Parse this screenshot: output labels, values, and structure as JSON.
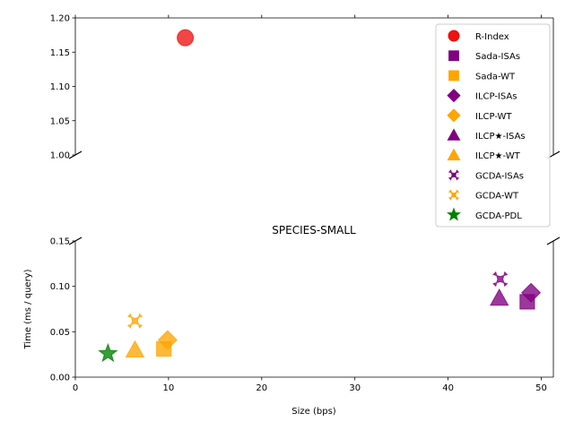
{
  "chart_data": {
    "type": "scatter",
    "title": "SPECIES-SMALL",
    "xlabel": "Size (bps)",
    "ylabel": "Time (ms / query)",
    "xlim": [
      0,
      51.3
    ],
    "x_ticks": [
      0,
      10,
      20,
      30,
      40,
      50
    ],
    "upper_panel": {
      "ylim": [
        1.0,
        1.2
      ],
      "y_ticks": [
        "1.00",
        "1.05",
        "1.10",
        "1.15",
        "1.20"
      ]
    },
    "lower_panel": {
      "ylim": [
        0.0,
        0.15
      ],
      "y_ticks": [
        "0.00",
        "0.05",
        "0.10",
        "0.15"
      ]
    },
    "colors": {
      "red": "#ee1111",
      "purple": "#800080",
      "orange": "#ffa500",
      "green": "#008000"
    },
    "series": [
      {
        "name": "R-Index",
        "marker": "circle",
        "color": "#ee1111",
        "x": 11.8,
        "y": 1.171
      },
      {
        "name": "Sada-ISAs",
        "marker": "square",
        "color": "#800080",
        "x": 48.5,
        "y": 0.083
      },
      {
        "name": "Sada-WT",
        "marker": "square",
        "color": "#ffa500",
        "x": 9.5,
        "y": 0.031
      },
      {
        "name": "ILCP-ISAs",
        "marker": "diamond",
        "color": "#800080",
        "x": 48.9,
        "y": 0.093
      },
      {
        "name": "ILCP-WT",
        "marker": "diamond",
        "color": "#ffa500",
        "x": 9.9,
        "y": 0.041
      },
      {
        "name": "ILCP★-ISAs",
        "marker": "triangle",
        "color": "#800080",
        "x": 45.5,
        "y": 0.087
      },
      {
        "name": "ILCP★-WT",
        "marker": "triangle",
        "color": "#ffa500",
        "x": 6.4,
        "y": 0.03
      },
      {
        "name": "GCDA-ISAs",
        "marker": "x",
        "color": "#800080",
        "x": 45.6,
        "y": 0.108
      },
      {
        "name": "GCDA-WT",
        "marker": "x",
        "color": "#ffa500",
        "x": 6.4,
        "y": 0.062
      },
      {
        "name": "GCDA-PDL",
        "marker": "star",
        "color": "#008000",
        "x": 3.5,
        "y": 0.026
      }
    ],
    "legend": {
      "position": "upper-right"
    }
  }
}
